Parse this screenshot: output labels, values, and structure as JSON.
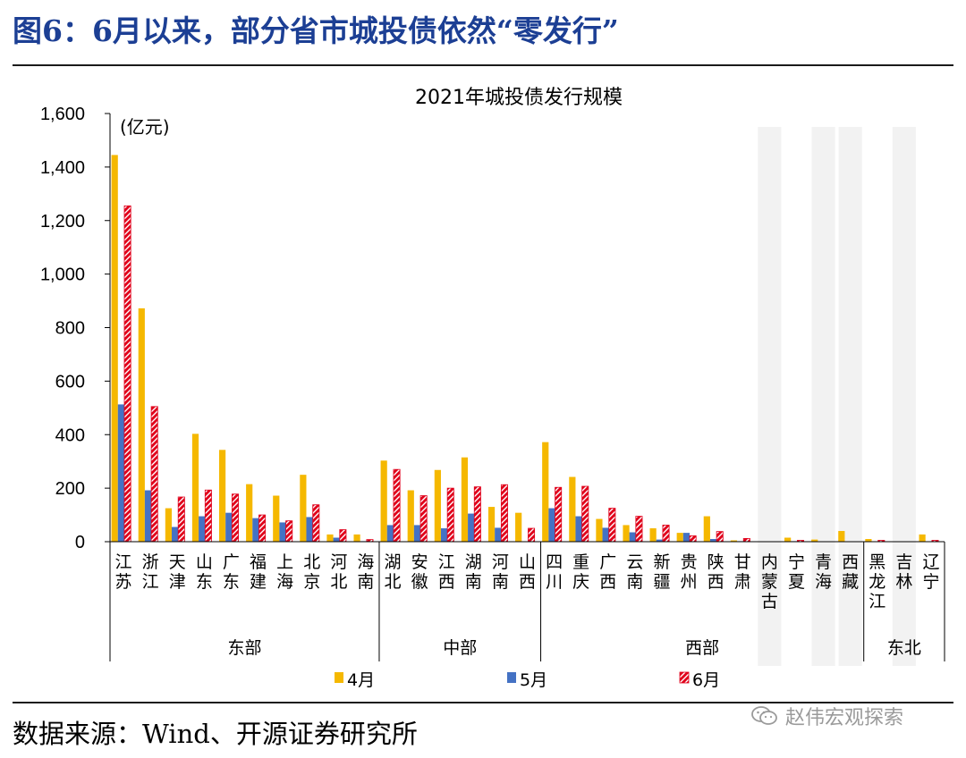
{
  "figure_title": "图6：6月以来，部分省市城投债依然“零发行”",
  "source_text": "数据来源：Wind、开源证券研究所",
  "watermark": "赵伟宏观探索",
  "colors": {
    "title_blue": "#1c3f94",
    "series_apr": "#f5b800",
    "series_may": "#4472c4",
    "series_jun": "#e0001b",
    "shade": "#f2f2f2"
  },
  "chart_data": {
    "type": "bar",
    "title": "2021年城投债发行规模",
    "unit_label": "(亿元)",
    "ylim": [
      0,
      1600
    ],
    "yticks": [
      0,
      200,
      400,
      600,
      800,
      1000,
      1200,
      1400,
      1600
    ],
    "ytick_labels": [
      "0",
      "200",
      "400",
      "600",
      "800",
      "1,000",
      "1,200",
      "1,400",
      "1,600"
    ],
    "categories": [
      "江苏",
      "浙江",
      "天津",
      "山东",
      "广东",
      "福建",
      "上海",
      "北京",
      "河北",
      "海南",
      "湖北",
      "安徽",
      "江西",
      "湖南",
      "河南",
      "山西",
      "四川",
      "重庆",
      "广西",
      "云南",
      "新疆",
      "贵州",
      "陕西",
      "甘肃",
      "内蒙古",
      "宁夏",
      "青海",
      "西藏",
      "黑龙江",
      "吉林",
      "辽宁"
    ],
    "series": [
      {
        "name": "4月",
        "values": [
          1445,
          872,
          125,
          403,
          343,
          215,
          172,
          250,
          27,
          27,
          303,
          192,
          268,
          315,
          130,
          108,
          372,
          242,
          85,
          62,
          50,
          33,
          95,
          5,
          0,
          15,
          8,
          40,
          10,
          0,
          27
        ]
      },
      {
        "name": "5月",
        "values": [
          513,
          192,
          55,
          95,
          108,
          88,
          72,
          92,
          15,
          2,
          62,
          62,
          50,
          105,
          52,
          0,
          125,
          95,
          52,
          35,
          8,
          33,
          10,
          2,
          0,
          2,
          0,
          0,
          0,
          0,
          0
        ]
      },
      {
        "name": "6月",
        "values": [
          1255,
          505,
          167,
          193,
          178,
          100,
          78,
          138,
          45,
          8,
          270,
          172,
          200,
          205,
          213,
          50,
          203,
          207,
          125,
          95,
          62,
          22,
          38,
          12,
          0,
          5,
          0,
          0,
          5,
          0,
          5
        ]
      }
    ],
    "regions": [
      {
        "name": "东部",
        "start": 0,
        "end": 9
      },
      {
        "name": "中部",
        "start": 10,
        "end": 15
      },
      {
        "name": "西部",
        "start": 16,
        "end": 27
      },
      {
        "name": "东北",
        "start": 28,
        "end": 30
      }
    ],
    "shaded_categories": [
      24,
      26,
      27,
      29
    ],
    "legend_position": "bottom"
  }
}
